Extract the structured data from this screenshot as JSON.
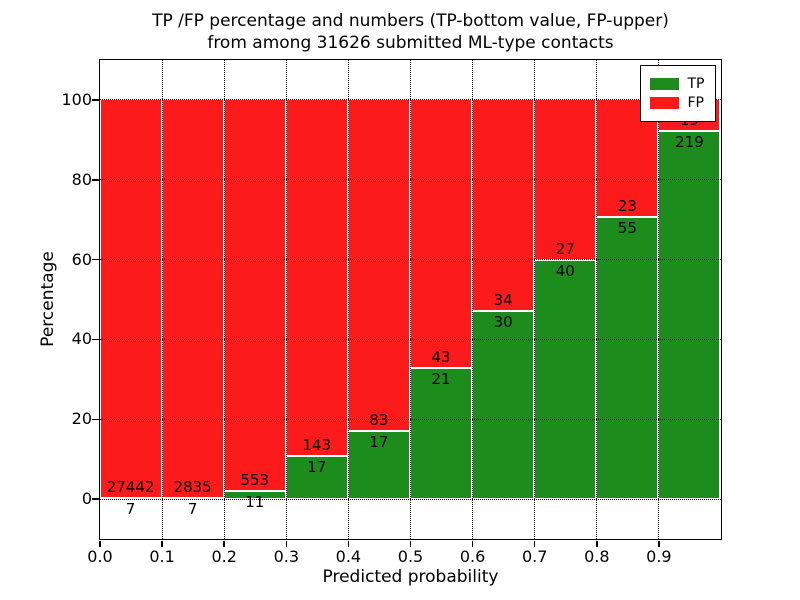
{
  "title": {
    "line1": "TP /FP percentage and numbers (TP-bottom value, FP-upper)",
    "line2": "from among 31626 submitted ML-type contacts"
  },
  "chart_data": {
    "type": "bar",
    "stacked": true,
    "normalized_to_percent": true,
    "title": "TP /FP percentage and numbers (TP-bottom value, FP-upper)\nfrom among 31626 submitted ML-type contacts",
    "xlabel": "Predicted probability",
    "ylabel": "Percentage",
    "xlim": [
      0.0,
      1.0
    ],
    "ylim": [
      -10,
      110
    ],
    "bin_width": 0.1,
    "bin_starts": [
      0.0,
      0.1,
      0.2,
      0.3,
      0.4,
      0.5,
      0.6,
      0.7,
      0.8,
      0.9
    ],
    "x_tick_labels": [
      "0.0",
      "0.1",
      "0.2",
      "0.3",
      "0.4",
      "0.5",
      "0.6",
      "0.7",
      "0.8",
      "0.9"
    ],
    "y_tick_values": [
      0,
      20,
      40,
      60,
      80,
      100
    ],
    "grid": true,
    "series": [
      {
        "name": "TP",
        "color": "#1c8c1c",
        "counts": [
          7,
          7,
          11,
          17,
          17,
          21,
          30,
          40,
          55,
          219
        ]
      },
      {
        "name": "FP",
        "color": "#fd1a1a",
        "counts": [
          27442,
          2835,
          553,
          143,
          83,
          43,
          34,
          27,
          23,
          19
        ]
      }
    ],
    "tp_percent_of_bin": [
      0.03,
      0.25,
      1.95,
      10.63,
      17.0,
      32.81,
      46.88,
      59.7,
      70.51,
      92.02
    ],
    "total_contacts": 31626,
    "legend": {
      "position": "upper right",
      "entries": [
        "TP",
        "FP"
      ]
    }
  },
  "colors": {
    "tp_green": "#1c8c1c",
    "fp_red": "#fd1a1a",
    "grid_and_text": "#000000",
    "bar_edge": "#ffffff",
    "background": "#ffffff"
  }
}
